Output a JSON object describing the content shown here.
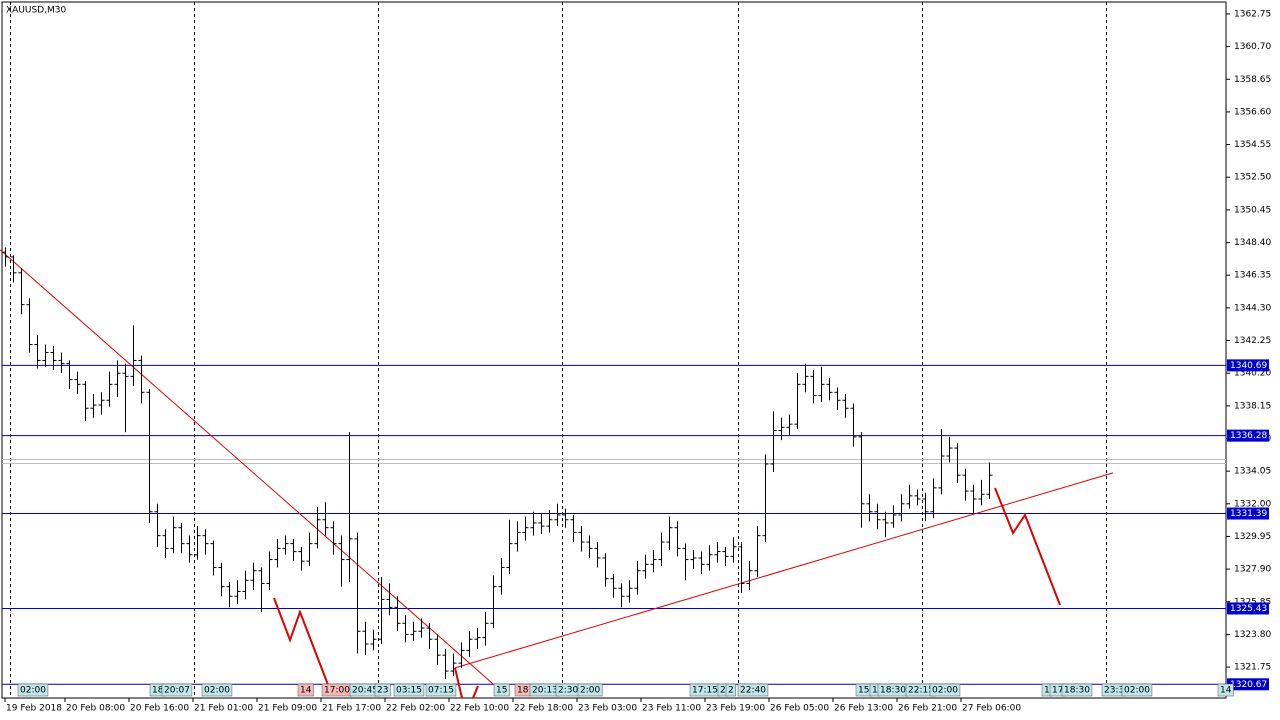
{
  "chart_data": {
    "type": "ohlc",
    "title": "XAUUSD,M30",
    "color": "#000000",
    "xlim": [
      -0.375,
      152.625
    ],
    "ylim": [
      1319.81,
      1363.5
    ],
    "yticks": [
      1362.75,
      {
        "value": 1360.7,
        "label": "1360.70"
      },
      1358.65,
      {
        "value": 1356.6,
        "label": "1356.60"
      },
      1354.55,
      {
        "value": 1352.5,
        "label": "1352.50"
      },
      1350.45,
      {
        "value": 1348.4,
        "label": "1348.40"
      },
      1346.35,
      {
        "value": 1344.3,
        "label": "1344.30"
      },
      1342.25,
      {
        "value": 1340.2,
        "label": "1340.20"
      },
      1338.15,
      {
        "value": 1336.1,
        "label": "1336.10"
      },
      1334.05,
      {
        "value": 1332,
        "label": "1332.00"
      },
      1329.95,
      {
        "value": 1327.9,
        "label": "1327.90"
      },
      1325.85,
      {
        "value": 1323.8,
        "label": "1323.80"
      },
      1321.75
    ],
    "xticks": [
      {
        "value": 0,
        "label": "19 Feb 2018"
      },
      {
        "value": 7.5,
        "label": "20 Feb 08:00"
      },
      {
        "value": 15.5,
        "label": "20 Feb 16:00"
      },
      {
        "value": 23.5,
        "label": "21 Feb 01:00"
      },
      {
        "value": 31.5,
        "label": "21 Feb 09:00"
      },
      {
        "value": 39.5,
        "label": "21 Feb 17:00"
      },
      {
        "value": 47.5,
        "label": "22 Feb 02:00"
      },
      {
        "value": 55.5,
        "label": "22 Feb 10:00"
      },
      {
        "value": 63.5,
        "label": "22 Feb 18:00"
      },
      {
        "value": 71.5,
        "label": "23 Feb 03:00"
      },
      {
        "value": 79.5,
        "label": "23 Feb 11:00"
      },
      {
        "value": 87.5,
        "label": "23 Feb 19:00"
      },
      {
        "value": 95.5,
        "label": "26 Feb 05:00"
      },
      {
        "value": 103.5,
        "label": "26 Feb 13:00"
      },
      {
        "value": 111.5,
        "label": "26 Feb 21:00"
      },
      {
        "value": 119.5,
        "label": "27 Feb 06:00"
      }
    ],
    "levels": [
      {
        "value": 1340.69,
        "color": "#0000cc"
      },
      {
        "value": 1336.28,
        "color": "#0000cc"
      },
      {
        "value": 1331.39,
        "color": "#0000cc"
      },
      {
        "value": 1325.43,
        "color": "#0000cc"
      },
      {
        "value": 1320.67,
        "color": "#0000cc"
      }
    ],
    "price_lines": [
      1334.78,
      1334.53
    ],
    "trendlines": [
      {
        "x": [
          -0.625,
          61.9
        ],
        "y": [
          1347.95,
          1320.3
        ],
        "color": "#e00000"
      },
      {
        "x": [
          56.25,
          138.5
        ],
        "y": [
          1321.7,
          1333.94
        ],
        "color": "#e00000"
      }
    ],
    "time_markers": [
      "02:00",
      "18",
      "20:07",
      "02:00",
      "14",
      "17:00",
      "20:45",
      "23",
      "03:15",
      "07:15",
      "15",
      "18",
      "20:13",
      "2:30",
      "2:00",
      "17:15",
      "2",
      "2",
      "22:40",
      "15",
      "1",
      "18:30",
      "22:15",
      "02:00",
      "1",
      "17",
      "18:30",
      "23:3",
      "02:00",
      "14"
    ],
    "bars": [
      [
        1347.8,
        1348.1,
        1346.9,
        1347.5
      ],
      [
        1347.5,
        1347.6,
        1345.9,
        1346.5
      ],
      [
        1346.5,
        1346.8,
        1343.9,
        1344.5
      ],
      [
        1344.5,
        1344.9,
        1341.5,
        1342
      ],
      [
        1342,
        1342.6,
        1340.5,
        1341
      ],
      [
        1341,
        1342,
        1340.6,
        1341.5
      ],
      [
        1341.5,
        1341.9,
        1340.4,
        1341
      ],
      [
        1341,
        1341.5,
        1340.2,
        1340.8
      ],
      [
        1340.8,
        1341,
        1339.2,
        1339.8
      ],
      [
        1339.8,
        1340.3,
        1338.9,
        1339.5
      ],
      [
        1339.5,
        1339.7,
        1337.2,
        1338
      ],
      [
        1338,
        1338.9,
        1337.4,
        1338.2
      ],
      [
        1338.2,
        1339,
        1337.6,
        1338.5
      ],
      [
        1338.5,
        1340.3,
        1338.1,
        1339.5
      ],
      [
        1339.5,
        1341,
        1338.7,
        1340.2
      ],
      [
        1340.2,
        1340.8,
        1336.5,
        1340
      ],
      [
        1340,
        1343.2,
        1339.4,
        1341
      ],
      [
        1341,
        1341.3,
        1338.3,
        1339
      ],
      [
        1339,
        1339.2,
        1330.8,
        1331.5
      ],
      [
        1331.5,
        1332,
        1329.3,
        1330
      ],
      [
        1330,
        1330.4,
        1328.6,
        1329.2
      ],
      [
        1329.2,
        1331.2,
        1328.9,
        1330.5
      ],
      [
        1330.5,
        1330.8,
        1328.9,
        1329.5
      ],
      [
        1329.5,
        1330,
        1328.3,
        1328.8
      ],
      [
        1328.8,
        1330.6,
        1328.5,
        1330
      ],
      [
        1330,
        1330.4,
        1328.8,
        1329.5
      ],
      [
        1329.5,
        1329.7,
        1327.5,
        1328
      ],
      [
        1328,
        1328.3,
        1326.2,
        1326.8
      ],
      [
        1326.8,
        1327.1,
        1325.5,
        1326.2
      ],
      [
        1326.2,
        1327.2,
        1325.7,
        1326.5
      ],
      [
        1326.5,
        1327.8,
        1326,
        1327.2
      ],
      [
        1327.2,
        1328.3,
        1326.6,
        1327.8
      ],
      [
        1327.8,
        1328,
        1325.2,
        1327
      ],
      [
        1327,
        1329,
        1326.6,
        1328.5
      ],
      [
        1328.5,
        1329.8,
        1328,
        1329.2
      ],
      [
        1329.2,
        1330,
        1328.8,
        1329.5
      ],
      [
        1329.5,
        1329.8,
        1328.4,
        1329
      ],
      [
        1329,
        1329.3,
        1327.8,
        1328.4
      ],
      [
        1328.4,
        1330.2,
        1328.1,
        1329.5
      ],
      [
        1329.5,
        1331.8,
        1329.2,
        1331
      ],
      [
        1331,
        1332.1,
        1330,
        1330.5
      ],
      [
        1330.5,
        1330.9,
        1328.8,
        1329.5
      ],
      [
        1329.5,
        1330,
        1326.8,
        1328.5
      ],
      [
        1328.5,
        1336.5,
        1327.1,
        1329.8
      ],
      [
        1329.8,
        1330.2,
        1322.6,
        1324
      ],
      [
        1324,
        1324.6,
        1322.5,
        1323.2
      ],
      [
        1323.2,
        1324.1,
        1322.8,
        1323.5
      ],
      [
        1323.5,
        1327.4,
        1323.2,
        1326
      ],
      [
        1326,
        1327,
        1325,
        1325.5
      ],
      [
        1325.5,
        1326.2,
        1324,
        1324.5
      ],
      [
        1324.5,
        1325,
        1323.3,
        1323.8
      ],
      [
        1323.8,
        1324.6,
        1323.4,
        1324
      ],
      [
        1324,
        1324.8,
        1323.6,
        1324.2
      ],
      [
        1324.2,
        1324.5,
        1322.9,
        1323.5
      ],
      [
        1323.5,
        1323.8,
        1321.9,
        1322.5
      ],
      [
        1322.5,
        1322.9,
        1321,
        1321.5
      ],
      [
        1321.5,
        1322.6,
        1321.2,
        1322
      ],
      [
        1322,
        1323.3,
        1321.7,
        1322.8
      ],
      [
        1322.8,
        1324,
        1322.4,
        1323.5
      ],
      [
        1323.5,
        1324.2,
        1322.9,
        1323.6
      ],
      [
        1323.6,
        1325.2,
        1323.1,
        1324.5
      ],
      [
        1324.5,
        1327.5,
        1324.2,
        1326.8
      ],
      [
        1326.8,
        1328.6,
        1326.3,
        1328
      ],
      [
        1328,
        1331,
        1327.6,
        1329.5
      ],
      [
        1329.5,
        1330.9,
        1329,
        1330.2
      ],
      [
        1330.2,
        1331.2,
        1329.7,
        1330.5
      ],
      [
        1330.5,
        1331.5,
        1330,
        1330.8
      ],
      [
        1330.8,
        1331.4,
        1330.1,
        1330.6
      ],
      [
        1330.6,
        1331.6,
        1330.2,
        1331
      ],
      [
        1331,
        1332,
        1330.6,
        1331.3
      ],
      [
        1331.3,
        1331.7,
        1330.5,
        1331
      ],
      [
        1331,
        1331.3,
        1329.6,
        1330.2
      ],
      [
        1330.2,
        1330.6,
        1329,
        1329.6
      ],
      [
        1329.6,
        1330,
        1328.6,
        1329.2
      ],
      [
        1329.2,
        1329.6,
        1328,
        1328.6
      ],
      [
        1328.6,
        1328.9,
        1326.8,
        1327.3
      ],
      [
        1327.3,
        1327.6,
        1326.1,
        1326.7
      ],
      [
        1326.7,
        1327,
        1325.5,
        1326.2
      ],
      [
        1326.2,
        1327.2,
        1325.8,
        1326.7
      ],
      [
        1326.7,
        1328.4,
        1326.3,
        1327.8
      ],
      [
        1327.8,
        1328.8,
        1327.3,
        1328.2
      ],
      [
        1328.2,
        1329.1,
        1327.7,
        1328.5
      ],
      [
        1328.5,
        1330.2,
        1328.1,
        1329.6
      ],
      [
        1329.6,
        1331.2,
        1329.1,
        1330.5
      ],
      [
        1330.5,
        1330.9,
        1328.7,
        1329.2
      ],
      [
        1329.2,
        1329.5,
        1327.2,
        1328.5
      ],
      [
        1328.5,
        1329.1,
        1327.9,
        1328.6
      ],
      [
        1328.6,
        1329,
        1327.6,
        1328.2
      ],
      [
        1328.2,
        1329.4,
        1327.8,
        1328.8
      ],
      [
        1328.8,
        1329.6,
        1328.3,
        1329
      ],
      [
        1329,
        1329.3,
        1328.1,
        1328.7
      ],
      [
        1328.7,
        1329.9,
        1328.3,
        1329.3
      ],
      [
        1329.3,
        1329.6,
        1326.4,
        1327
      ],
      [
        1327,
        1328.4,
        1326.6,
        1327.8
      ],
      [
        1327.8,
        1330.6,
        1327.4,
        1330
      ],
      [
        1330,
        1335.1,
        1329.6,
        1334.5
      ],
      [
        1334.5,
        1337.8,
        1334,
        1336.6
      ],
      [
        1336.6,
        1337.4,
        1336,
        1336.8
      ],
      [
        1336.8,
        1337.6,
        1336.3,
        1337
      ],
      [
        1337,
        1340.2,
        1336.7,
        1339.5
      ],
      [
        1339.5,
        1340.8,
        1339,
        1340
      ],
      [
        1340,
        1340.4,
        1338.3,
        1338.8
      ],
      [
        1338.8,
        1340.6,
        1338.4,
        1339.5
      ],
      [
        1339.5,
        1339.9,
        1338.5,
        1339
      ],
      [
        1339,
        1339.3,
        1337.9,
        1338.5
      ],
      [
        1338.5,
        1338.9,
        1337.4,
        1338
      ],
      [
        1338,
        1338.3,
        1335.6,
        1336.2
      ],
      [
        1336.2,
        1336.5,
        1330.5,
        1332
      ],
      [
        1332,
        1332.6,
        1330.9,
        1331.5
      ],
      [
        1331.5,
        1332,
        1330.4,
        1331
      ],
      [
        1331,
        1331.5,
        1329.9,
        1330.8
      ],
      [
        1330.8,
        1331.9,
        1330.5,
        1331.3
      ],
      [
        1331.3,
        1332.6,
        1330.9,
        1332
      ],
      [
        1332,
        1333.2,
        1331.7,
        1332.5
      ],
      [
        1332.5,
        1332.9,
        1331.9,
        1332.3
      ],
      [
        1332.3,
        1332.7,
        1330.9,
        1331.5
      ],
      [
        1331.5,
        1333.6,
        1331.1,
        1333
      ],
      [
        1333,
        1336.7,
        1332.6,
        1335
      ],
      [
        1335,
        1336.2,
        1334.6,
        1335.5
      ],
      [
        1335.5,
        1335.8,
        1333.3,
        1333.8
      ],
      [
        1333.8,
        1334.2,
        1332.2,
        1332.8
      ],
      [
        1332.8,
        1333.2,
        1331.4,
        1332.3
      ],
      [
        1332.3,
        1333.5,
        1331.9,
        1332.6
      ],
      [
        1332.6,
        1334.6,
        1332.3,
        1333.8
      ]
    ]
  }
}
